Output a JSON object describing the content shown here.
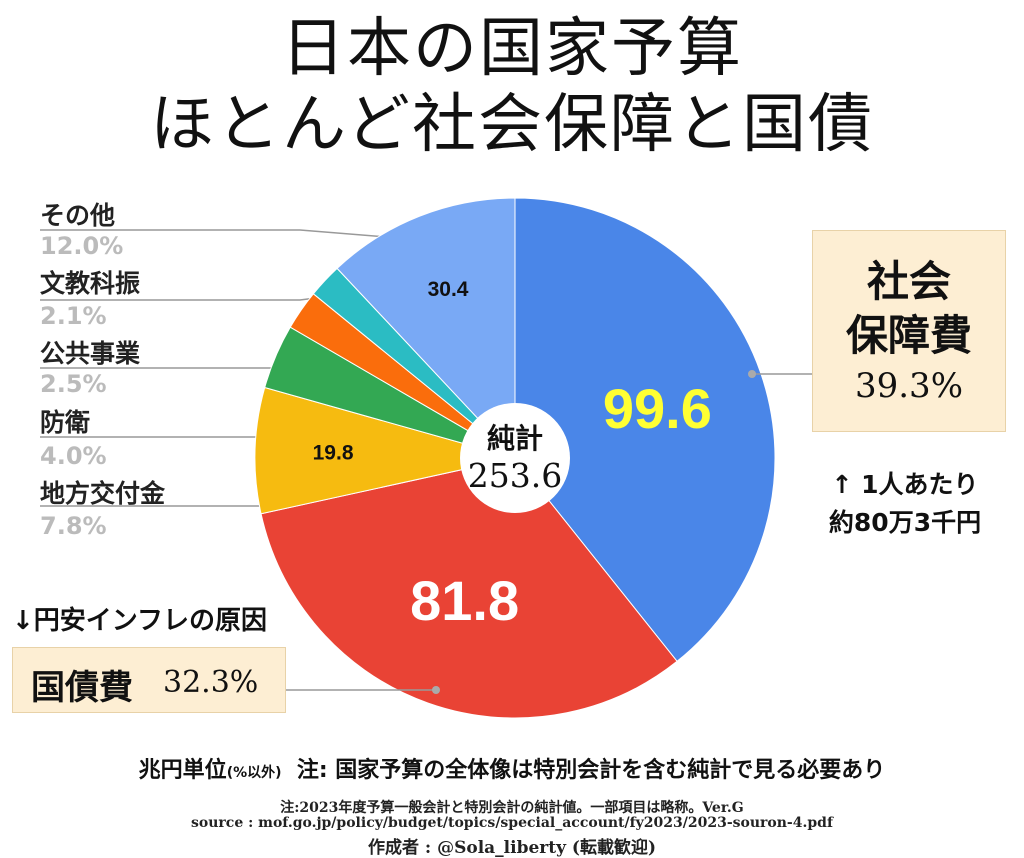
{
  "title_line1": "日本の国家予算",
  "title_line2": "ほとんど社会保障と国債",
  "chart_data": {
    "type": "pie",
    "unit_note": "兆円単位",
    "unit_note_paren": "(%以外)",
    "note": "注: 国家予算の全体像は特別会計を含む純計で見る必要あり",
    "center_label": "純計",
    "total": "253.6",
    "start_angle_deg": 0,
    "slices": [
      {
        "name": "社会保障費",
        "value": 99.6,
        "pct": "39.3%",
        "value_label": "99.6",
        "color": "#4a86e8",
        "label_color": "#ffff33"
      },
      {
        "name": "国債費",
        "value": 81.8,
        "pct": "32.3%",
        "value_label": "81.8",
        "color": "#e94335",
        "label_color": "#ffffff"
      },
      {
        "name": "地方交付金",
        "value": 19.8,
        "pct": "7.8%",
        "value_label": "19.8",
        "color": "#f6bb10",
        "label_color": "#111111"
      },
      {
        "name": "防衛",
        "value": 10.2,
        "pct": "4.0%",
        "value_label": "",
        "color": "#33a853",
        "label_color": "#111111"
      },
      {
        "name": "公共事業",
        "value": 6.3,
        "pct": "2.5%",
        "value_label": "",
        "color": "#fa6d0c",
        "label_color": "#111111"
      },
      {
        "name": "文教科振",
        "value": 5.4,
        "pct": "2.1%",
        "value_label": "",
        "color": "#2bbcc3",
        "label_color": "#111111"
      },
      {
        "name": "その他",
        "value": 30.4,
        "pct": "12.0%",
        "value_label": "30.4",
        "color": "#79a9f5",
        "label_color": "#111111"
      }
    ]
  },
  "annotations": {
    "social_security_name": "社会\n保障費",
    "social_security_pct": "39.3%",
    "debt_name": "国債費",
    "debt_pct": "32.3%",
    "per_capita_line1": "↑ 1人あたり",
    "per_capita_line2": "約80万3千円",
    "yen_inflation": "↓円安インフレの原因"
  },
  "left_labels": [
    {
      "name": "その他",
      "pct": "12.0%"
    },
    {
      "name": "文教科振",
      "pct": "2.1%"
    },
    {
      "name": "公共事業",
      "pct": "2.5%"
    },
    {
      "name": "防衛",
      "pct": "4.0%"
    },
    {
      "name": "地方交付金",
      "pct": "7.8%"
    }
  ],
  "footer": {
    "line1": "注:2023年度予算一般会計と特別会計の純計値。一部項目は略称。Ver.G",
    "line2": "source : mof.go.jp/policy/budget/topics/special_account/fy2023/2023-souron-4.pdf",
    "line3": "作成者 : @Sola_liberty (転載歓迎)"
  }
}
